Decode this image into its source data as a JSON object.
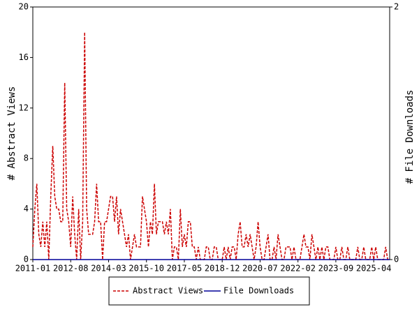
{
  "chart_data": {
    "type": "line",
    "x": [
      "2011-01",
      "2011-02",
      "2011-03",
      "2011-04",
      "2011-05",
      "2011-06",
      "2011-07",
      "2011-08",
      "2011-09",
      "2011-10",
      "2011-11",
      "2011-12",
      "2012-01",
      "2012-02",
      "2012-03",
      "2012-04",
      "2012-05",
      "2012-06",
      "2012-07",
      "2012-08",
      "2012-09",
      "2012-10",
      "2012-11",
      "2012-12",
      "2013-01",
      "2013-02",
      "2013-03",
      "2013-04",
      "2013-05",
      "2013-06",
      "2013-07",
      "2013-08",
      "2013-09",
      "2013-10",
      "2013-11",
      "2013-12",
      "2014-01",
      "2014-02",
      "2014-03",
      "2014-04",
      "2014-05",
      "2014-06",
      "2014-07",
      "2014-08",
      "2014-09",
      "2014-10",
      "2014-11",
      "2014-12",
      "2015-01",
      "2015-02",
      "2015-03",
      "2015-04",
      "2015-05",
      "2015-06",
      "2015-07",
      "2015-08",
      "2015-09",
      "2015-10",
      "2015-11",
      "2015-12",
      "2016-01",
      "2016-02",
      "2016-03",
      "2016-04",
      "2016-05",
      "2016-06",
      "2016-07",
      "2016-08",
      "2016-09",
      "2016-10",
      "2016-11",
      "2016-12",
      "2017-01",
      "2017-02",
      "2017-03",
      "2017-04",
      "2017-05",
      "2017-06",
      "2017-07",
      "2017-08",
      "2017-09",
      "2017-10",
      "2017-11",
      "2017-12",
      "2018-01",
      "2018-02",
      "2018-03",
      "2018-04",
      "2018-05",
      "2018-06",
      "2018-07",
      "2018-08",
      "2018-09",
      "2018-10",
      "2018-11",
      "2018-12",
      "2019-01",
      "2019-02",
      "2019-03",
      "2019-04",
      "2019-05",
      "2019-06",
      "2019-07",
      "2019-08",
      "2019-09",
      "2019-10",
      "2019-11",
      "2019-12",
      "2020-01",
      "2020-02",
      "2020-03",
      "2020-04",
      "2020-05",
      "2020-06",
      "2020-07",
      "2020-08",
      "2020-09",
      "2020-10",
      "2020-11",
      "2020-12",
      "2021-01",
      "2021-02",
      "2021-03",
      "2021-04",
      "2021-05",
      "2021-06",
      "2021-07",
      "2021-08",
      "2021-09",
      "2021-10",
      "2021-11",
      "2021-12",
      "2022-01",
      "2022-02",
      "2022-03",
      "2022-04",
      "2022-05",
      "2022-06",
      "2022-07",
      "2022-08",
      "2022-09",
      "2022-10",
      "2022-11",
      "2022-12",
      "2023-01",
      "2023-02",
      "2023-03",
      "2023-04",
      "2023-05",
      "2023-06",
      "2023-07",
      "2023-08",
      "2023-09",
      "2023-10",
      "2023-11",
      "2023-12",
      "2024-01",
      "2024-02",
      "2024-03",
      "2024-04",
      "2024-05",
      "2024-06",
      "2024-07",
      "2024-08",
      "2024-09",
      "2024-10",
      "2024-11",
      "2024-12",
      "2025-01",
      "2025-02",
      "2025-03",
      "2025-04",
      "2025-05",
      "2025-06",
      "2025-07",
      "2025-08",
      "2025-09",
      "2025-10",
      "2025-11",
      "2025-12"
    ],
    "xticks": [
      "2011-01",
      "2012-08",
      "2014-03",
      "2015-10",
      "2017-05",
      "2018-12",
      "2020-07",
      "2022-02",
      "2023-09",
      "2025-04"
    ],
    "ylabel": "# Abstract Views",
    "y2label": "# File Downloads",
    "ylim": [
      0,
      20
    ],
    "yticks": [
      0,
      4,
      8,
      12,
      16,
      20
    ],
    "y2lim": [
      0,
      2
    ],
    "y2ticks": [
      0,
      2
    ],
    "series": [
      {
        "name": "Abstract Views",
        "color": "#cc0000",
        "dash": true,
        "values": [
          1,
          4,
          6,
          2,
          1,
          3,
          1,
          3,
          0,
          5,
          9,
          5,
          4,
          4,
          3,
          3,
          14,
          4,
          3,
          1,
          5,
          2,
          0,
          4,
          0,
          3,
          18,
          4,
          2,
          2,
          2,
          3,
          6,
          3,
          3,
          0,
          3,
          3,
          4,
          5,
          5,
          3,
          5,
          2,
          4,
          3,
          2,
          1,
          2,
          0,
          1,
          2,
          1,
          1,
          1,
          5,
          4,
          3,
          1,
          3,
          2,
          6,
          2,
          3,
          3,
          3,
          2,
          3,
          2,
          4,
          0,
          1,
          1,
          0,
          4,
          1,
          2,
          1,
          3,
          3,
          1,
          1,
          0,
          1,
          0,
          0,
          0,
          1,
          1,
          0,
          0,
          1,
          1,
          0,
          0,
          0,
          1,
          0,
          1,
          0,
          1,
          1,
          0,
          2,
          3,
          1,
          1,
          2,
          1,
          2,
          1,
          0,
          1,
          3,
          1,
          0,
          0,
          1,
          2,
          0,
          0,
          1,
          0,
          2,
          1,
          0,
          0,
          1,
          1,
          1,
          0,
          1,
          0,
          0,
          0,
          1,
          2,
          1,
          1,
          0,
          2,
          1,
          0,
          1,
          0,
          1,
          0,
          1,
          1,
          0,
          0,
          0,
          1,
          0,
          0,
          1,
          0,
          0,
          1,
          0,
          0,
          0,
          0,
          1,
          0,
          0,
          1,
          0,
          0,
          0,
          1,
          0,
          1,
          0,
          0,
          0,
          0,
          1,
          0,
          0
        ]
      },
      {
        "name": "File Downloads",
        "color": "#000099",
        "dash": false,
        "axis": "y2",
        "values": [
          0,
          0,
          0,
          0,
          0,
          0,
          0,
          0,
          0,
          0,
          0,
          0,
          0,
          0,
          0,
          0,
          0,
          0,
          0,
          0,
          0,
          0,
          0,
          0,
          0,
          0,
          0,
          0,
          0,
          0,
          0,
          0,
          0,
          0,
          0,
          0,
          0,
          0,
          0,
          0,
          0,
          0,
          0,
          0,
          0,
          0,
          0,
          0,
          0,
          0,
          0,
          0,
          0,
          0,
          0,
          0,
          0,
          0,
          0,
          0,
          0,
          0,
          0,
          0,
          0,
          0,
          0,
          0,
          0,
          0,
          0,
          0,
          0,
          0,
          0,
          0,
          0,
          0,
          0,
          0,
          0,
          0,
          0,
          0,
          0,
          0,
          0,
          0,
          0,
          0,
          0,
          0,
          0,
          0,
          0,
          0,
          0,
          0,
          0,
          0,
          0,
          0,
          0,
          0,
          0,
          0,
          0,
          0,
          0,
          0,
          0,
          0,
          0,
          0,
          0,
          0,
          0,
          0,
          0,
          0,
          0,
          0,
          0,
          0,
          0,
          0,
          0,
          0,
          0,
          0,
          0,
          0,
          0,
          0,
          0,
          0,
          0,
          0,
          0,
          0,
          0,
          0,
          0,
          0,
          0,
          0,
          0,
          0,
          0,
          0,
          0,
          0,
          0,
          0,
          0,
          0,
          0,
          0,
          0,
          0,
          0,
          0,
          0,
          0,
          0,
          0,
          0,
          0,
          0,
          0,
          0,
          0,
          0,
          0,
          0,
          0,
          0,
          0,
          0,
          0
        ]
      }
    ]
  }
}
